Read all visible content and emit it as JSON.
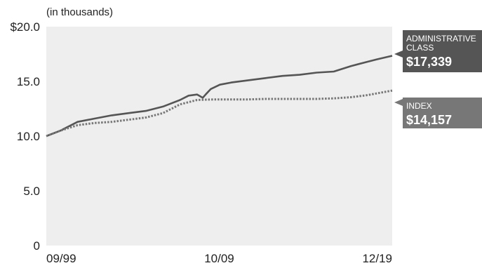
{
  "chart_data": {
    "type": "line",
    "unit_note": "(in thousands)",
    "x_tick_labels": [
      "09/99",
      "10/09",
      "12/19"
    ],
    "y_tick_labels": [
      "$20.0",
      "15.0",
      "10.0",
      "5.0",
      "0"
    ],
    "y_ticks": [
      20,
      15,
      10,
      5,
      0
    ],
    "ylim": [
      0,
      20
    ],
    "x_range_years": [
      1999.67,
      2019.92
    ],
    "grid": false,
    "plot_background": "#eeeeee",
    "series": [
      {
        "name": "ADMINISTRATIVE CLASS",
        "style": "solid",
        "color": "#555555",
        "end_label": "$17,339",
        "x": [
          1999.67,
          2000.5,
          2001.5,
          2002.5,
          2003.5,
          2004.5,
          2005.5,
          2006.5,
          2007.5,
          2008.0,
          2008.5,
          2008.83,
          2009.0,
          2009.3,
          2009.83,
          2010.5,
          2011.5,
          2012.5,
          2013.5,
          2014.5,
          2015.5,
          2016.5,
          2017.5,
          2018.5,
          2019.0,
          2019.92
        ],
        "values": [
          10.0,
          10.5,
          11.3,
          11.6,
          11.9,
          12.1,
          12.3,
          12.7,
          13.3,
          13.7,
          13.8,
          13.5,
          13.8,
          14.3,
          14.7,
          14.9,
          15.1,
          15.3,
          15.5,
          15.6,
          15.8,
          15.9,
          16.4,
          16.8,
          17.0,
          17.34
        ]
      },
      {
        "name": "INDEX",
        "style": "dotted",
        "color": "#777777",
        "end_label": "$14,157",
        "x": [
          1999.67,
          2000.5,
          2001.5,
          2002.5,
          2003.5,
          2004.5,
          2005.5,
          2006.5,
          2007.5,
          2008.5,
          2009.5,
          2010.5,
          2011.5,
          2012.5,
          2013.5,
          2014.5,
          2015.5,
          2016.5,
          2017.5,
          2018.5,
          2019.0,
          2019.92
        ],
        "values": [
          10.0,
          10.5,
          11.0,
          11.2,
          11.3,
          11.5,
          11.7,
          12.1,
          12.9,
          13.3,
          13.35,
          13.35,
          13.35,
          13.4,
          13.4,
          13.4,
          13.4,
          13.45,
          13.55,
          13.75,
          13.9,
          14.16
        ]
      }
    ]
  },
  "callouts": {
    "admin": {
      "title_line1": "ADMINISTRATIVE",
      "title_line2": "CLASS",
      "value": "$17,339",
      "bg": "#555555"
    },
    "index": {
      "title_line1": "INDEX",
      "value": "$14,157",
      "bg": "#777777"
    }
  }
}
